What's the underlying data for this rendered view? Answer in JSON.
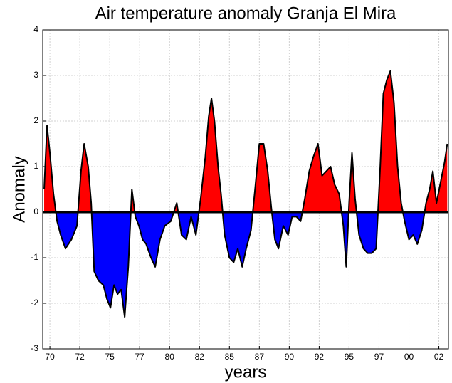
{
  "chart_data": {
    "type": "area",
    "title": "Air temperature anomaly Granja El Mira",
    "x_label": "years",
    "y_label": "Anomaly",
    "x": [
      1969.52,
      1969.76,
      1970.0,
      1970.3,
      1970.6,
      1970.9,
      1971.3,
      1971.8,
      1972.26,
      1972.6,
      1972.86,
      1973.2,
      1973.45,
      1973.7,
      1974.05,
      1974.46,
      1974.76,
      1975.06,
      1975.36,
      1975.65,
      1975.95,
      1976.25,
      1976.55,
      1976.85,
      1977.14,
      1977.44,
      1977.74,
      1978.04,
      1978.45,
      1978.8,
      1979.2,
      1979.6,
      1980.1,
      1980.6,
      1981.0,
      1981.4,
      1981.8,
      1982.2,
      1982.6,
      1982.98,
      1983.27,
      1983.5,
      1983.75,
      1984.05,
      1984.3,
      1984.6,
      1985.0,
      1985.36,
      1985.7,
      1986.07,
      1986.4,
      1986.8,
      1987.14,
      1987.5,
      1987.86,
      1988.2,
      1988.5,
      1988.8,
      1989.1,
      1989.5,
      1989.9,
      1990.24,
      1990.6,
      1990.95,
      1991.3,
      1991.67,
      1992.0,
      1992.4,
      1992.74,
      1993.1,
      1993.45,
      1993.8,
      1994.17,
      1994.52,
      1994.76,
      1995.0,
      1995.24,
      1995.5,
      1995.83,
      1996.2,
      1996.55,
      1996.9,
      1997.26,
      1997.6,
      1997.86,
      1998.15,
      1998.45,
      1998.75,
      1999.05,
      1999.35,
      1999.64,
      2000.0,
      2000.36,
      2000.7,
      2001.07,
      2001.43,
      2001.73,
      2002.0,
      2002.3,
      2002.6,
      2002.98,
      2003.2
    ],
    "values": [
      0.5,
      1.9,
      1.3,
      0.4,
      -0.2,
      -0.5,
      -0.8,
      -0.6,
      -0.3,
      0.9,
      1.5,
      1.0,
      0.2,
      -1.3,
      -1.5,
      -1.6,
      -1.9,
      -2.1,
      -1.6,
      -1.8,
      -1.7,
      -2.3,
      -1.2,
      0.5,
      -0.1,
      -0.3,
      -0.6,
      -0.7,
      -1.0,
      -1.2,
      -0.6,
      -0.3,
      -0.2,
      0.2,
      -0.5,
      -0.6,
      -0.1,
      -0.5,
      0.3,
      1.2,
      2.1,
      2.5,
      2.0,
      1.0,
      0.4,
      -0.5,
      -1.0,
      -1.1,
      -0.8,
      -1.2,
      -0.8,
      -0.4,
      0.5,
      1.5,
      1.5,
      0.9,
      0.1,
      -0.6,
      -0.8,
      -0.3,
      -0.5,
      -0.1,
      -0.1,
      -0.2,
      0.3,
      0.9,
      1.2,
      1.5,
      0.8,
      0.9,
      1.0,
      0.6,
      0.4,
      -0.3,
      -1.2,
      0.2,
      1.3,
      0.3,
      -0.5,
      -0.8,
      -0.9,
      -0.9,
      -0.8,
      1.0,
      2.6,
      2.9,
      3.1,
      2.4,
      1.0,
      0.2,
      -0.2,
      -0.6,
      -0.5,
      -0.7,
      -0.4,
      0.2,
      0.5,
      0.9,
      0.2,
      0.6,
      1.1,
      1.5
    ],
    "positive_color": "#ff0000",
    "negative_color": "#0000ff",
    "line_color": "#000000",
    "xlim": [
      1969.4,
      2003.3
    ],
    "ylim": [
      -3,
      4
    ],
    "xticks": [
      {
        "value": 1970,
        "label": "70"
      },
      {
        "value": 1972.5,
        "label": "72"
      },
      {
        "value": 1975,
        "label": "75"
      },
      {
        "value": 1977.5,
        "label": "77"
      },
      {
        "value": 1980,
        "label": "80"
      },
      {
        "value": 1982.5,
        "label": "82"
      },
      {
        "value": 1985,
        "label": "85"
      },
      {
        "value": 1987.5,
        "label": "87"
      },
      {
        "value": 1990,
        "label": "90"
      },
      {
        "value": 1992.5,
        "label": "92"
      },
      {
        "value": 1995,
        "label": "95"
      },
      {
        "value": 1997.5,
        "label": "97"
      },
      {
        "value": 2000,
        "label": "00"
      },
      {
        "value": 2002.5,
        "label": "02"
      }
    ],
    "yticks": [
      -3,
      -2,
      -1,
      0,
      1,
      2,
      3,
      4
    ],
    "grid": true
  }
}
